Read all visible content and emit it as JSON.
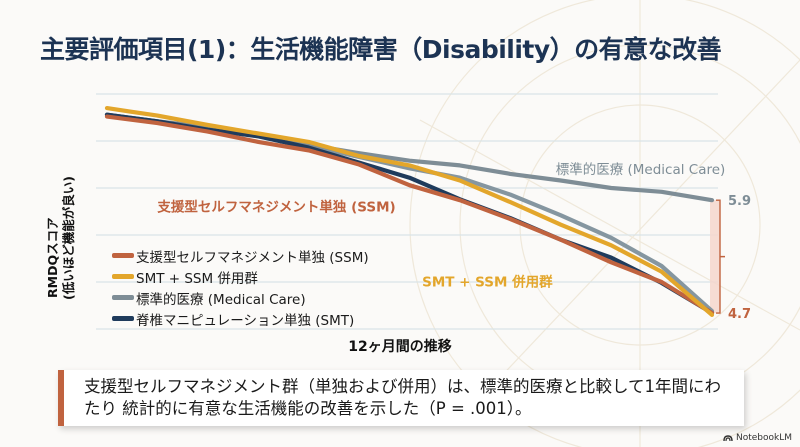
{
  "slide": {
    "title": "主要評価項目(1)：生活機能障害（Disability）の有意な改善",
    "callout": "支援型セルフマネジメント群（単独および併用）は、標準的医療と比較して1年間にわたり 統計的に有意な生活機能の改善を示した（P = .001）。",
    "brand": "NotebookLM",
    "brand_icon": "notebooklm-logo-icon"
  },
  "colors": {
    "title": "#1c3353",
    "ssm": "#c0633f",
    "combo": "#e3a62b",
    "medical": "#7e8d96",
    "smt": "#1f3b5c",
    "bracket": "#c0633f",
    "bracket_fill": "#f4d6cc",
    "grid": "#d9e4e8"
  },
  "chart_data": {
    "type": "line",
    "title": "主要評価項目(1)：生活機能障害（Disability）の有意な改善",
    "xlabel": "12ヶ月間の推移",
    "ylabel": [
      "RMDQスコア",
      "(低いほど機能が良い)"
    ],
    "x": [
      0,
      1,
      2,
      3,
      4,
      5,
      6,
      7,
      8,
      9,
      10,
      11,
      12
    ],
    "ylim": [
      4.53,
      7.03
    ],
    "grid": true,
    "grid_lines": 6,
    "legend_position": "bottom-left",
    "series": [
      {
        "key": "ssm",
        "name": "支援型セルフマネジメント単独 (SSM)",
        "color": "#c0633f",
        "in_legend": true,
        "values": [
          6.79,
          6.72,
          6.63,
          6.52,
          6.43,
          6.28,
          6.06,
          5.9,
          5.7,
          5.48,
          5.24,
          5.03,
          4.7
        ]
      },
      {
        "key": "combo",
        "name": "SMT + SSM 併用群",
        "color": "#e3a62b",
        "in_legend": true,
        "values": [
          6.88,
          6.8,
          6.7,
          6.61,
          6.52,
          6.37,
          6.27,
          6.11,
          5.88,
          5.64,
          5.42,
          5.14,
          4.68
        ]
      },
      {
        "key": "medical",
        "name": "標準的医療 (Medical Care)",
        "color": "#7e8d96",
        "in_legend": true,
        "values": [
          6.81,
          6.74,
          6.68,
          6.6,
          6.49,
          6.4,
          6.32,
          6.27,
          6.18,
          6.11,
          6.03,
          5.99,
          5.9
        ]
      },
      {
        "key": "smt",
        "name": "脊椎マニピュレーション単独 (SMT)",
        "color": "#1f3b5c",
        "in_legend": true,
        "values": [
          6.81,
          6.74,
          6.65,
          6.58,
          6.46,
          6.3,
          6.14,
          5.91,
          5.71,
          5.48,
          5.29,
          5.02,
          4.7
        ]
      },
      {
        "key": "extra",
        "name": "",
        "color": "#8596a0",
        "in_legend": false,
        "values": [
          6.81,
          6.74,
          6.66,
          6.58,
          6.48,
          6.36,
          6.24,
          6.14,
          5.96,
          5.74,
          5.5,
          5.2,
          4.72
        ]
      }
    ],
    "annotations": [
      {
        "text": "支援型セルフマネジメント単独 (SSM)",
        "color": "#c0633f",
        "bold": true,
        "x": 1.0,
        "y": 5.78
      },
      {
        "text": "SMT + SSM 併用群",
        "color": "#e3a62b",
        "bold": true,
        "x": 6.25,
        "y": 4.98
      },
      {
        "text": "標準的医療 (Medical Care)",
        "color": "#7e8d96",
        "bold": false,
        "x": 8.9,
        "y": 6.18
      }
    ],
    "end_labels": [
      {
        "text": "5.9",
        "value": 5.9,
        "color": "#7e8d96"
      },
      {
        "text": "4.7",
        "value": 4.7,
        "color": "#c0633f"
      }
    ]
  }
}
